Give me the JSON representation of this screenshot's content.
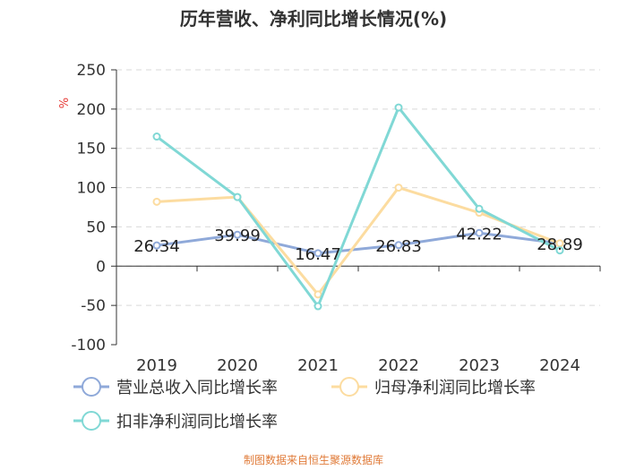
{
  "chart_data": {
    "type": "line",
    "title": "历年营收、净利同比增长情况(%)",
    "ylabel": "%",
    "categories": [
      "2019",
      "2020",
      "2021",
      "2022",
      "2023",
      "2024"
    ],
    "ylim": [
      -100,
      250
    ],
    "yticks": [
      -100,
      -50,
      0,
      50,
      100,
      150,
      200,
      250
    ],
    "grid": true,
    "legend_position": "bottom-left",
    "series": [
      {
        "name": "营业总收入同比增长率",
        "color": "#8fa9d9",
        "values": [
          26.34,
          39.99,
          16.47,
          26.83,
          42.22,
          28.89
        ],
        "labels": [
          "26.34",
          "39.99",
          "16.47",
          "26.83",
          "42.22",
          "28.89"
        ]
      },
      {
        "name": "归母净利润同比增长率",
        "color": "#fcdca0",
        "values": [
          82,
          88,
          -36,
          100,
          68,
          29
        ]
      },
      {
        "name": "扣非净利润同比增长率",
        "color": "#80d8d5",
        "values": [
          165,
          88,
          -51,
          202,
          73,
          20
        ]
      }
    ]
  },
  "footer": {
    "source": "制图数据来自恒生聚源数据库",
    "source_color": "#e07b39"
  },
  "ylabel_color": "#e53935"
}
